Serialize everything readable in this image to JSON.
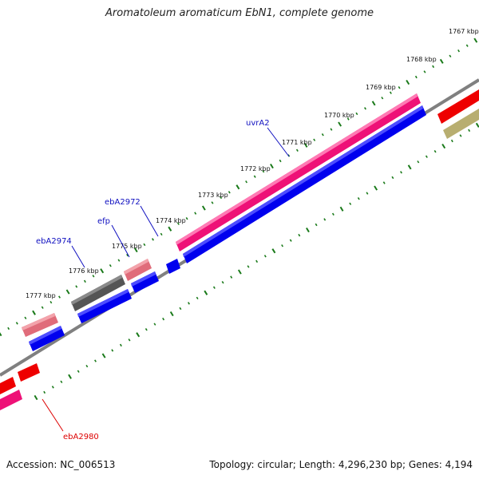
{
  "title": "Aromatoleum aromaticum EbN1, complete genome",
  "accession": "Accession: NC_006513",
  "summary": "Topology: circular; Length: 4,296,230 bp; Genes: 4,194",
  "colors": {
    "backbone": "#808080",
    "ticks": "#1a7a1a",
    "gene_blue": "#0000ee",
    "gene_magenta": "#ee1177",
    "gene_pink": "#e06c7a",
    "gene_gray": "#555555",
    "gene_red": "#ee0000",
    "gene_olive": "#b8ae70",
    "label_blue": "#1010c0",
    "label_red": "#dd0000"
  },
  "ticks": [
    {
      "label": "1767 kbp"
    },
    {
      "label": "1768 kbp"
    },
    {
      "label": "1769 kbp"
    },
    {
      "label": "1770 kbp"
    },
    {
      "label": "1771 kbp"
    },
    {
      "label": "1772 kbp"
    },
    {
      "label": "1773 kbp"
    },
    {
      "label": "1774 kbp"
    },
    {
      "label": "1775 kbp"
    },
    {
      "label": "1776 kbp"
    },
    {
      "label": "1777 kbp"
    }
  ],
  "gene_labels": [
    {
      "name": "uvrA2",
      "color": "label_blue"
    },
    {
      "name": "ebA2972",
      "color": "label_blue"
    },
    {
      "name": "efp",
      "color": "label_blue"
    },
    {
      "name": "ebA2974",
      "color": "label_blue"
    },
    {
      "name": "ebA2980",
      "color": "label_red"
    }
  ]
}
